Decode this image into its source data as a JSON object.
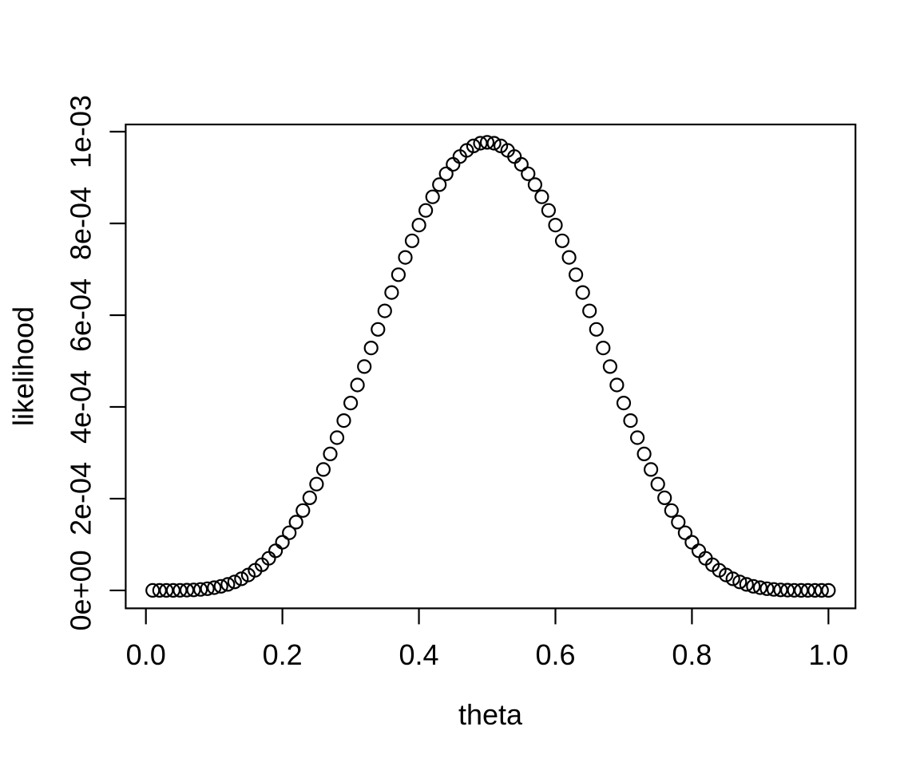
{
  "chart_data": {
    "type": "scatter",
    "title": "",
    "xlabel": "theta",
    "ylabel": "likelihood",
    "legend": null,
    "grid": false,
    "marker": "open-circle",
    "colors": {
      "points": "#000000",
      "axis": "#000000",
      "background": "#ffffff"
    },
    "x_tick_labels": [
      "0.0",
      "0.2",
      "0.4",
      "0.6",
      "0.8",
      "1.0"
    ],
    "x_tick_values": [
      0.0,
      0.2,
      0.4,
      0.6,
      0.8,
      1.0
    ],
    "y_tick_labels": [
      "0e+00",
      "2e-04",
      "4e-04",
      "6e-04",
      "8e-04",
      "1e-03"
    ],
    "y_tick_values": [
      0,
      0.0002,
      0.0004,
      0.0006,
      0.0008,
      0.001
    ],
    "xlim": [
      -0.0296,
      1.0396
    ],
    "ylim": [
      -3.90625e-05,
      0.001015625
    ],
    "x": [
      0.01,
      0.02,
      0.03,
      0.04,
      0.05,
      0.06,
      0.07,
      0.08,
      0.09,
      0.1,
      0.11,
      0.12,
      0.13,
      0.14,
      0.15,
      0.16,
      0.17,
      0.18,
      0.19,
      0.2,
      0.21,
      0.22,
      0.23,
      0.24,
      0.25,
      0.26,
      0.27,
      0.28,
      0.29,
      0.3,
      0.31,
      0.32,
      0.33,
      0.34,
      0.35,
      0.36,
      0.37,
      0.38,
      0.39,
      0.4,
      0.41,
      0.42,
      0.43,
      0.44,
      0.45,
      0.46,
      0.47,
      0.48,
      0.49,
      0.5,
      0.51,
      0.52,
      0.53,
      0.54,
      0.55,
      0.56,
      0.57,
      0.58,
      0.59,
      0.6,
      0.61,
      0.62,
      0.63,
      0.64,
      0.65,
      0.66,
      0.67,
      0.68,
      0.69,
      0.7,
      0.71,
      0.72,
      0.73,
      0.74,
      0.75,
      0.76,
      0.77,
      0.78,
      0.79,
      0.8,
      0.81,
      0.82,
      0.83,
      0.84,
      0.85,
      0.86,
      0.87,
      0.88,
      0.89,
      0.9,
      0.91,
      0.92,
      0.93,
      0.94,
      0.95,
      0.96,
      0.97,
      0.98,
      0.99,
      1.0
    ],
    "y": [
      9.51e-11,
      2.893e-09,
      2.087e-08,
      8.349e-08,
      2.418e-07,
      5.707e-07,
      1.169e-06,
      2.16e-06,
      3.685e-06,
      5.905e-06,
      8.993e-06,
      1.313e-05,
      1.851e-05,
      2.53e-05,
      3.369e-05,
      4.385e-05,
      5.593e-05,
      7.005e-05,
      8.634e-05,
      0.0001049,
      0.0001257,
      0.0001488,
      0.0001742,
      0.0002019,
      0.0002317,
      0.0002636,
      0.0002975,
      0.000333,
      0.0003701,
      0.0004084,
      0.0004478,
      0.0004879,
      0.0005284,
      0.000569,
      0.0006094,
      0.0006493,
      0.0006882,
      0.0007259,
      0.000762,
      0.0007963,
      0.0008283,
      0.0008578,
      0.0008845,
      0.0009082,
      0.0009287,
      0.0009457,
      0.0009591,
      0.0009688,
      0.0009747,
      0.0009766,
      0.0009747,
      0.0009688,
      0.0009591,
      0.0009457,
      0.0009287,
      0.0009082,
      0.0008845,
      0.0008578,
      0.0008283,
      0.0007963,
      0.000762,
      0.0007259,
      0.0006882,
      0.0006493,
      0.0006094,
      0.000569,
      0.0005284,
      0.0004879,
      0.0004478,
      0.0004084,
      0.0003701,
      0.000333,
      0.0002975,
      0.0002636,
      0.0002317,
      0.0002019,
      0.0001742,
      0.0001488,
      0.0001257,
      0.0001049,
      8.634e-05,
      7.005e-05,
      5.593e-05,
      4.385e-05,
      3.369e-05,
      2.53e-05,
      1.851e-05,
      1.313e-05,
      8.993e-06,
      5.905e-06,
      3.685e-06,
      2.16e-06,
      1.169e-06,
      5.707e-07,
      2.418e-07,
      8.349e-08,
      2.087e-08,
      2.893e-09,
      9.51e-11,
      0
    ]
  }
}
